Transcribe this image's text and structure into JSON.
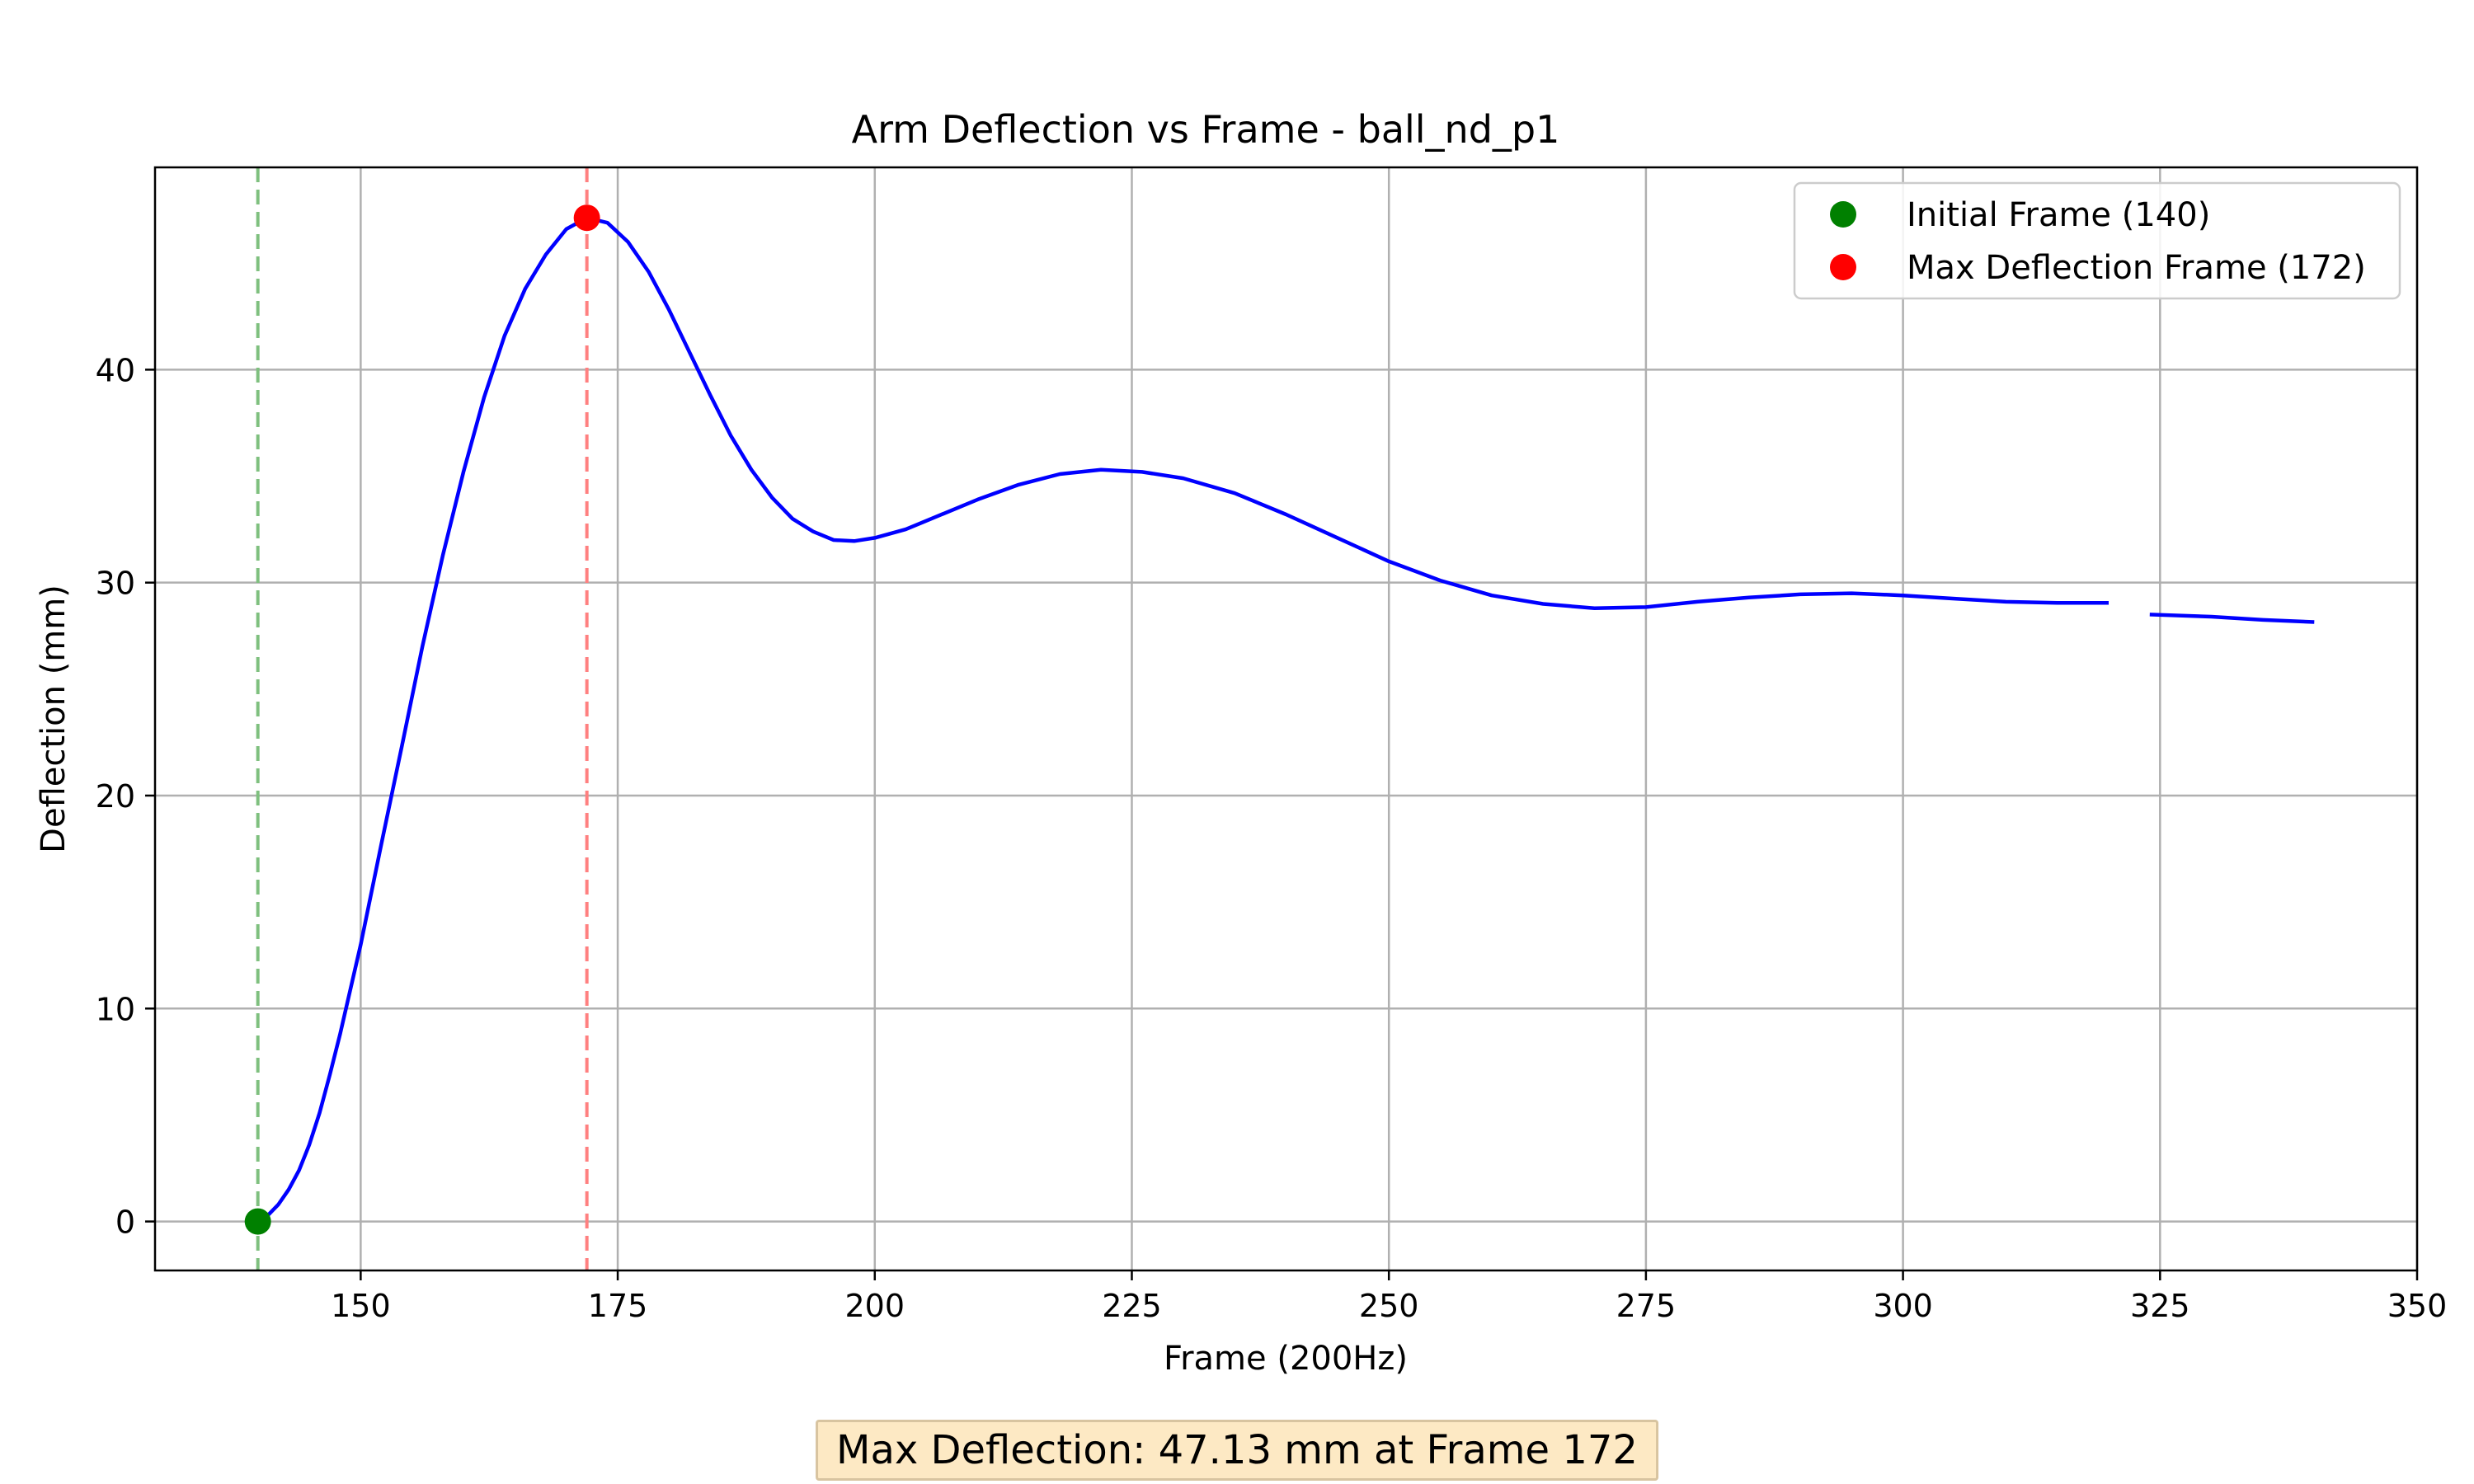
{
  "chart_data": {
    "type": "line",
    "title": "Arm Deflection vs Frame - ball_nd_p1",
    "xlabel": "Frame (200Hz)",
    "ylabel": "Deflection (mm)",
    "xlim": [
      130,
      350
    ],
    "ylim": [
      -2.3,
      49.5
    ],
    "xticks": [
      150,
      175,
      200,
      225,
      250,
      275,
      300,
      325,
      350
    ],
    "yticks": [
      0,
      10,
      20,
      30,
      40
    ],
    "grid": true,
    "legend_position": "top-right",
    "series": [
      {
        "color": "#0000ff",
        "segments": [
          [
            [
              140,
              0
            ],
            [
              141,
              0.3
            ],
            [
              142,
              0.8
            ],
            [
              143,
              1.5
            ],
            [
              144,
              2.4
            ],
            [
              145,
              3.6
            ],
            [
              146,
              5.1
            ],
            [
              147,
              6.9
            ],
            [
              148,
              8.8
            ],
            [
              150,
              13.0
            ],
            [
              152,
              17.7
            ],
            [
              154,
              22.3
            ],
            [
              156,
              27.0
            ],
            [
              158,
              31.3
            ],
            [
              160,
              35.2
            ],
            [
              162,
              38.7
            ],
            [
              164,
              41.6
            ],
            [
              166,
              43.8
            ],
            [
              168,
              45.4
            ],
            [
              170,
              46.6
            ],
            [
              172,
              47.13
            ],
            [
              174,
              46.9
            ],
            [
              176,
              46.0
            ],
            [
              178,
              44.6
            ],
            [
              180,
              42.8
            ],
            [
              182,
              40.8
            ],
            [
              184,
              38.8
            ],
            [
              186,
              36.9
            ],
            [
              188,
              35.3
            ],
            [
              190,
              34.0
            ],
            [
              192,
              33.0
            ],
            [
              194,
              32.4
            ],
            [
              196,
              32.0
            ],
            [
              198,
              31.95
            ],
            [
              200,
              32.1
            ],
            [
              203,
              32.5
            ],
            [
              206,
              33.1
            ],
            [
              210,
              33.9
            ],
            [
              214,
              34.6
            ],
            [
              218,
              35.1
            ],
            [
              222,
              35.3
            ],
            [
              226,
              35.2
            ],
            [
              230,
              34.9
            ],
            [
              235,
              34.2
            ],
            [
              240,
              33.2
            ],
            [
              245,
              32.1
            ],
            [
              250,
              31.0
            ],
            [
              255,
              30.1
            ],
            [
              260,
              29.4
            ],
            [
              265,
              29.0
            ],
            [
              270,
              28.8
            ],
            [
              275,
              28.85
            ],
            [
              280,
              29.1
            ],
            [
              285,
              29.3
            ],
            [
              290,
              29.45
            ],
            [
              295,
              29.5
            ],
            [
              300,
              29.4
            ],
            [
              305,
              29.25
            ],
            [
              310,
              29.1
            ],
            [
              315,
              29.05
            ],
            [
              320,
              29.05
            ]
          ],
          [
            [
              324,
              28.5
            ],
            [
              330,
              28.4
            ],
            [
              335,
              28.25
            ],
            [
              340,
              28.15
            ]
          ]
        ]
      }
    ],
    "markers": [
      {
        "label": "Initial Frame (140)",
        "x": 140,
        "y": 0,
        "color": "#008000",
        "vline_color": "#7fc07f"
      },
      {
        "label": "Max Deflection Frame (172)",
        "x": 172,
        "y": 47.13,
        "color": "#ff0000",
        "vline_color": "#ff8080"
      }
    ],
    "annotation": "Max Deflection: 47.13 mm at Frame 172"
  }
}
